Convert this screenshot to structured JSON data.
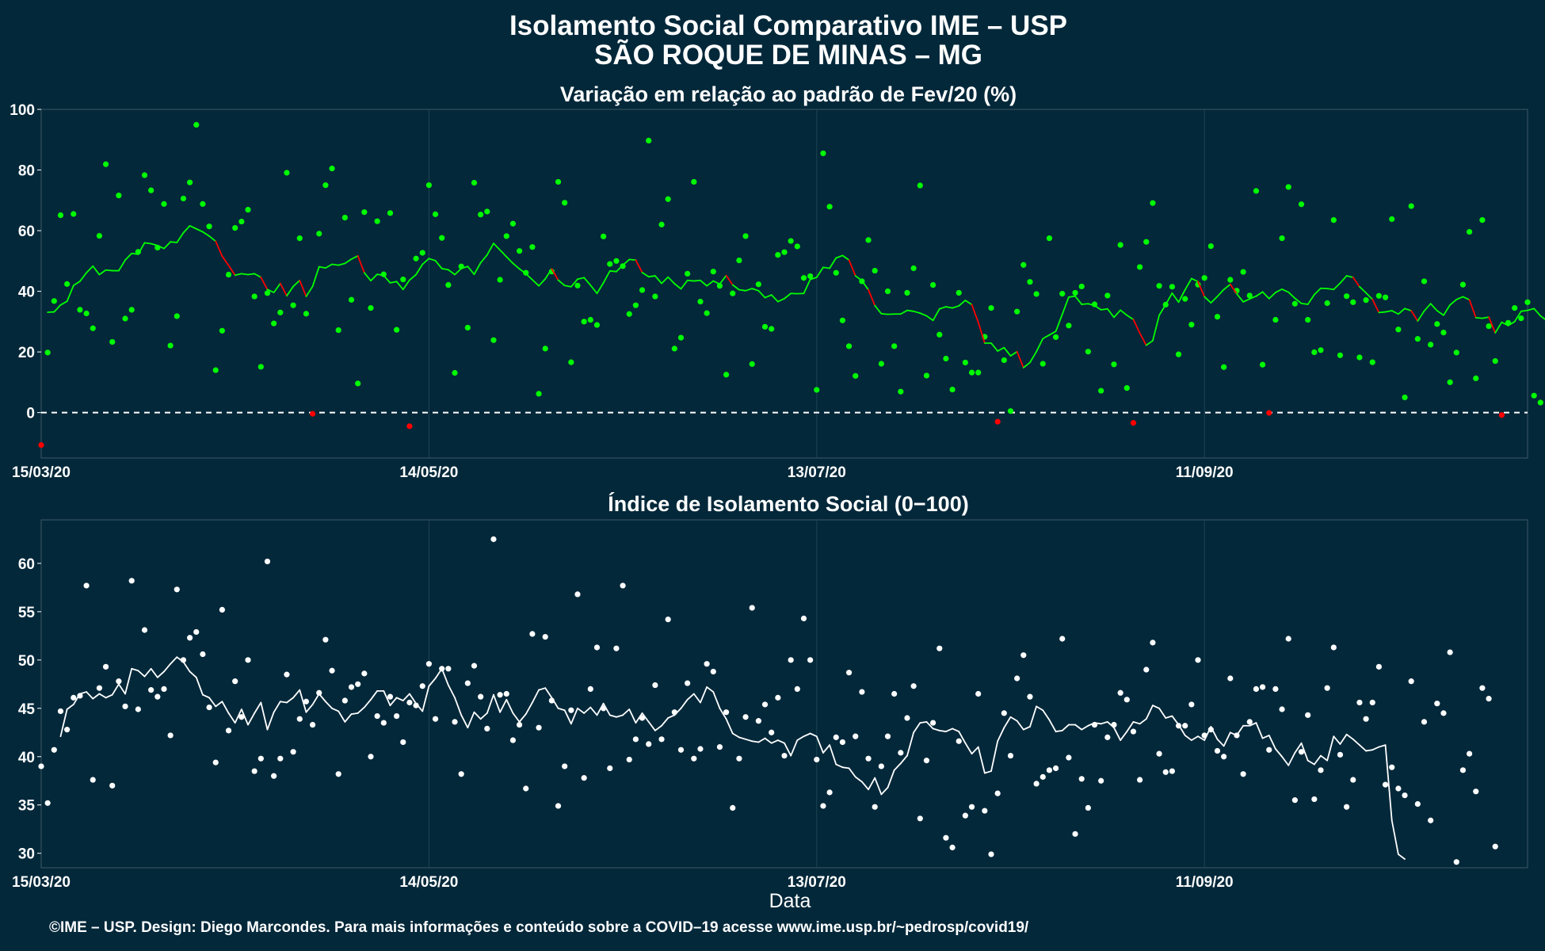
{
  "header": {
    "title_line1": "Isolamento Social Comparativo IME – USP",
    "title_line2": "SÃO ROQUE DE MINAS – MG"
  },
  "caption": "©IME – USP. Design: Diego Marcondes. Para mais informações e conteúdo sobre a COVID–19 acesse www.ime.usp.br/~pedrosp/covid19/",
  "colors": {
    "background": "#03283a",
    "grid": "#1f4452",
    "positive": "#00ff00",
    "negative": "#ff0000",
    "index": "#ffffff"
  },
  "chart_data": [
    {
      "id": "variation",
      "type": "scatter",
      "title": "Variação em relação ao padrão de Fev/20 (%)",
      "xlabel": "",
      "ylabel": "",
      "x_start": "15/03/20",
      "x_end": "31/10/20",
      "xticks": [
        "15/03/20",
        "14/05/20",
        "13/07/20",
        "11/09/20"
      ],
      "xlim": [
        0,
        230
      ],
      "ylim": [
        -15,
        100
      ],
      "yticks": [
        0,
        20,
        40,
        60,
        80,
        100
      ],
      "reference_line": 0,
      "grid": true,
      "series": [
        {
          "kind": "daily_points",
          "values": [
            -10.7,
            19.8,
            36.8,
            65.1,
            42.4,
            65.5,
            33.9,
            32.7,
            27.8,
            58.3,
            81.9,
            23.3,
            71.6,
            31,
            33.9,
            53,
            78.3,
            73.3,
            54.4,
            68.8,
            22.1,
            31.8,
            70.6,
            75.9,
            94.9,
            68.8,
            61.4,
            14,
            27,
            45.5,
            60.9,
            63,
            66.9,
            38.3,
            15.1,
            39.4,
            29.4,
            33,
            79.1,
            35.4,
            57.5,
            32.6,
            -0.4,
            59,
            75,
            80.5,
            27.2,
            64.3,
            37.2,
            9.6,
            66.1,
            34.5,
            63.1,
            45.6,
            65.8,
            27.3,
            43.9,
            -4.5,
            50.8,
            52.7,
            75,
            65.4,
            57.6,
            42.1,
            13.1,
            48.2,
            28,
            75.8,
            65.3,
            66.3,
            23.9,
            43.8,
            58.2,
            62.3,
            53.3,
            46.1,
            54.6,
            6.2,
            21.1,
            46.5,
            76.1,
            69.2,
            16.6,
            41.9,
            30,
            30.6,
            28.9,
            58.1,
            49,
            50,
            48.3,
            32.5,
            35.4,
            40.4,
            89.7,
            38.3,
            62,
            70.4,
            21.1,
            24.7,
            45.8,
            76.1,
            36.6,
            32.8,
            46.5,
            41.8,
            12.5,
            39.3,
            50.2,
            58.2,
            16,
            42.3,
            28.3,
            27.6,
            52,
            52.9,
            56.6,
            54.8,
            44.4,
            45,
            7.5,
            85.5,
            67.9,
            46.1,
            30.4,
            21.9,
            12.1,
            43.3,
            56.9,
            46.8,
            16.1,
            40,
            21.9,
            6.9,
            39.5,
            47.6,
            74.9,
            12.2,
            42.1,
            25.7,
            17.8,
            7.6,
            39.5,
            16.5,
            13.2,
            13.2,
            25,
            34.5,
            -3,
            17.3,
            0.5,
            33.3,
            48.7,
            43.1,
            39.1,
            16.1,
            57.5,
            24.9,
            39.2,
            28.7,
            39.5,
            41.6,
            20.1,
            35.7,
            7.2,
            38.6,
            15.9,
            55.3,
            8.1,
            -3.4,
            48,
            56.3,
            69.1,
            41.8,
            35.6,
            41.5,
            19.2,
            37.5,
            29,
            42.2,
            44.4,
            54.9,
            31.6,
            15,
            43.8,
            40.2,
            46.4,
            38.6,
            73.1,
            15.8,
            -0.1,
            30.6,
            57.5,
            74.4,
            35.9,
            68.7,
            30.6,
            19.9,
            20.6,
            36.1,
            63.5,
            18.9,
            38.4,
            36.4,
            18.2,
            37.1,
            16.6,
            38.5,
            38,
            63.8,
            27.4,
            5,
            68.1,
            24.3,
            43.3,
            22.4,
            29.2,
            26.4,
            10,
            19.8,
            42.2,
            59.6,
            11.3,
            63.5,
            28.5,
            17,
            -0.8,
            29.6,
            34.5,
            31.1,
            36.4,
            5.6,
            3.3
          ]
        },
        {
          "kind": "moving_average",
          "start_x": 1,
          "values": [
            33.1,
            33.2,
            35.5,
            36.7,
            41.9,
            43.3,
            46.1,
            48.3,
            45.5,
            47,
            46.8,
            46.8,
            50.3,
            52.5,
            52.2,
            56,
            55.7,
            55.1,
            54.1,
            56.3,
            56.1,
            59.3,
            61.6,
            60.6,
            59.6,
            58.2,
            56.5,
            51.6,
            48.5,
            45.3,
            45.8,
            45.5,
            45.8,
            44.6,
            40.6,
            39.6,
            42.6,
            38.5,
            41.6,
            43.6,
            38.3,
            41.6,
            48.1,
            47.7,
            48.9,
            48.6,
            49.2,
            50.6,
            51.7,
            46.1,
            43.5,
            45.6,
            45.2,
            42.8,
            43.2,
            40.6,
            43.7,
            45.5,
            48.9,
            50.8,
            50.1,
            47.5,
            47.1,
            45.5,
            47.5,
            48.2,
            45.6,
            49.4,
            52,
            55.8,
            53.6,
            51.4,
            49.2,
            47.4,
            45.8,
            43.8,
            41.8,
            44.1,
            47.4,
            43.7,
            41.9,
            41.5,
            44,
            44.5,
            42,
            39.3,
            42.8,
            46.7,
            46.5,
            48.6,
            50.5,
            50.3,
            46.2,
            44.8,
            45.1,
            42.6,
            44.7,
            42.5,
            40.8,
            43.6,
            43.4,
            43.6,
            41.8,
            43.4,
            42.4,
            45.2,
            42.1,
            40.5,
            40.2,
            40.9,
            40.2,
            37.9,
            38.8,
            36.6,
            37.6,
            39.3,
            39.2,
            39.3,
            43.9,
            44.6,
            47.9,
            47.6,
            51,
            51.8,
            50.3,
            45.1,
            43.5,
            40.5,
            35.3,
            32.6,
            32.4,
            32.5,
            32.5,
            33.7,
            33.4,
            32.8,
            31.9,
            30.4,
            34.2,
            34.9,
            34.5,
            35.2,
            37,
            35.6,
            29.8,
            22.9,
            22.9,
            20.3,
            21.4,
            18.7,
            20.1,
            14.8,
            16.5,
            20.1,
            24.4,
            25.6,
            26.8,
            32.4,
            38.1,
            38.4,
            35.7,
            35.9,
            35.3,
            33.9,
            34.2,
            31.4,
            33.8,
            32.1,
            30.7,
            26.2,
            22.2,
            23.7,
            32.1,
            35.6,
            39.4,
            36.4,
            40.5,
            44.2,
            43.2,
            38.2,
            36.2,
            38.3,
            40.6,
            42.3,
            39.2,
            36.5,
            37.5,
            38.4,
            39.8,
            37.6,
            39.6,
            40.7,
            39.7,
            37.7,
            36,
            35.7,
            38.9,
            41,
            40.9,
            40.6,
            42.7,
            45.1,
            44.6,
            41.5,
            39.5,
            37.3,
            33,
            33.2,
            33.6,
            32.5,
            34.3,
            33.6,
            30.2,
            33.5,
            35.9,
            33.6,
            32.1,
            35.5,
            37.3,
            38.2,
            37.2,
            31.3,
            31.1,
            31.5,
            26.3,
            29.8,
            28.7,
            30,
            33.4,
            33.7,
            34.3,
            31.9,
            30.3,
            26.7,
            28.8,
            25.1,
            22.5,
            20.7
          ]
        }
      ]
    },
    {
      "id": "index",
      "type": "scatter",
      "title": "Índice de Isolamento Social (0−100)",
      "xlabel": "Data",
      "ylabel": "",
      "x_start": "15/03/20",
      "x_end": "31/10/20",
      "xticks": [
        "15/03/20",
        "14/05/20",
        "13/07/20",
        "11/09/20"
      ],
      "xlim": [
        0,
        230
      ],
      "ylim": [
        28.5,
        64.5
      ],
      "yticks": [
        30,
        35,
        40,
        45,
        50,
        55,
        60
      ],
      "grid": true,
      "series": [
        {
          "kind": "daily_points",
          "values": [
            39,
            35.2,
            40.7,
            44.7,
            42.8,
            46.1,
            46.3,
            57.7,
            37.6,
            47.1,
            49.3,
            37,
            47.8,
            45.2,
            58.2,
            44.9,
            53.1,
            46.9,
            46.2,
            47,
            42.2,
            57.3,
            50,
            52.3,
            52.9,
            50.6,
            45.1,
            39.4,
            55.2,
            42.7,
            47.8,
            44.1,
            50,
            38.5,
            39.8,
            60.2,
            38,
            39.8,
            48.5,
            40.5,
            43.9,
            45.7,
            43.3,
            46.6,
            52.1,
            48.9,
            38.2,
            45.8,
            47.2,
            47.5,
            48.6,
            40,
            44.2,
            43.5,
            46.2,
            44.2,
            41.5,
            45.6,
            45.3,
            47.3,
            49.6,
            43.9,
            49.1,
            49.1,
            43.6,
            38.2,
            47.6,
            49.4,
            46.2,
            42.9,
            62.5,
            46.4,
            46.5,
            41.7,
            43.3,
            36.7,
            52.7,
            43,
            52.4,
            45.8,
            34.9,
            39,
            44.8,
            56.8,
            37.8,
            47,
            51.3,
            45,
            38.8,
            51.2,
            57.7,
            39.7,
            41.8,
            44,
            41.3,
            47.4,
            41.8,
            54.2,
            44.6,
            40.7,
            47.6,
            39.8,
            40.8,
            49.6,
            48.8,
            41,
            44.6,
            34.7,
            39.8,
            44.1,
            55.4,
            43.7,
            45.4,
            42.5,
            46.1,
            40.1,
            50,
            47,
            54.3,
            50,
            39.7,
            34.9,
            36.3,
            42,
            41.5,
            48.7,
            42.1,
            46.7,
            39.8,
            34.8,
            39,
            42.1,
            46.5,
            40.4,
            44,
            47.3,
            33.6,
            39.6,
            43.5,
            51.2,
            31.6,
            30.6,
            41.6,
            33.9,
            34.8,
            46.5,
            34.4,
            29.9,
            36.2,
            44.5,
            40.1,
            48.1,
            50.5,
            46.2,
            37.2,
            37.9,
            38.6,
            38.8,
            52.2,
            39.9,
            32,
            37.7,
            34.7,
            43.3,
            37.5,
            42,
            43.3,
            46.6,
            45.9,
            42.6,
            37.6,
            49,
            51.8,
            40.3,
            38.4,
            38.5,
            43.2,
            43.2,
            45.4,
            50,
            42.2,
            42.8,
            40.6,
            40,
            48.1,
            42.2,
            38.2,
            43.6,
            47,
            47.2,
            40.7,
            47,
            44.9,
            52.2,
            35.5,
            40.5,
            44.3,
            35.6,
            38.6,
            47.1,
            51.3,
            40.2,
            34.8,
            37.6,
            45.6,
            43.9,
            45.6,
            49.3,
            37.1,
            38.9,
            36.7,
            36,
            47.8,
            35.1,
            43.6,
            33.4,
            45.5,
            44.5,
            50.8,
            29.1,
            38.6,
            40.3,
            36.4,
            47.1,
            46,
            30.7
          ]
        },
        {
          "kind": "moving_average",
          "start_x": 3,
          "values": [
            42.1,
            44.9,
            45.4,
            46.5,
            46.7,
            46,
            46.5,
            46.1,
            46.4,
            47.5,
            46.5,
            49.1,
            48.9,
            48.3,
            49.1,
            48.2,
            48.8,
            49.6,
            50.3,
            49.8,
            48.8,
            48.2,
            46.4,
            46.1,
            45.2,
            45.7,
            44.5,
            43.5,
            44.9,
            43.3,
            44.5,
            45.6,
            42.8,
            44.6,
            45.7,
            45.6,
            46.1,
            46.9,
            44.6,
            45.4,
            46.5,
            45.7,
            45,
            44.7,
            43.6,
            44.4,
            44.5,
            45.1,
            45.9,
            46.8,
            46.8,
            45.3,
            46.1,
            45.8,
            46.5,
            45.5,
            44.7,
            47.3,
            48.1,
            49.1,
            47.4,
            46.1,
            44.3,
            43,
            44.6,
            43.9,
            44.5,
            46.4,
            44.6,
            45.9,
            44.5,
            43.6,
            44.4,
            45.6,
            46.9,
            47.1,
            46.1,
            45,
            44.8,
            43.4,
            45,
            44.5,
            45.1,
            44.3,
            45.5,
            44.3,
            44.1,
            44.3,
            44.9,
            43.5,
            44.5,
            43.6,
            42.7,
            43.2,
            44,
            44.3,
            45,
            45.9,
            46.5,
            45.6,
            47.2,
            46.7,
            45,
            43.9,
            42.4,
            42,
            41.8,
            41.6,
            41.5,
            41.9,
            41.4,
            41.7,
            41.4,
            40.1,
            41.7,
            42.1,
            42.4,
            42.1,
            40.4,
            41.2,
            39.2,
            38.9,
            38.8,
            37.9,
            37.4,
            36.6,
            37.8,
            36.1,
            36.8,
            38.6,
            39.3,
            40.1,
            42.5,
            43.5,
            43.6,
            42.9,
            42.7,
            42.6,
            42.9,
            42.6,
            41.4,
            40.3,
            41,
            38.3,
            38.5,
            41.6,
            43,
            44.1,
            43.7,
            42.8,
            43.1,
            45.2,
            44.8,
            43.8,
            42.6,
            42.7,
            43.3,
            43.3,
            42.8,
            43.2,
            43.5,
            43.4,
            43.6,
            43,
            41.7,
            42.6,
            43.6,
            43.4,
            43.9,
            45.3,
            45,
            44,
            44.2,
            43.3,
            42.2,
            41.7,
            42.1,
            41.7,
            43.1,
            41.8,
            41.1,
            42.5,
            42.2,
            43.2,
            43.2,
            43.5,
            41.9,
            42.2,
            40.8,
            40,
            39.1,
            40.4,
            41.4,
            39.6,
            39.2,
            40.1,
            39.6,
            42.1,
            41.3,
            42.3,
            41.8,
            41.2,
            40.6,
            40.7,
            41,
            41.2,
            33.4,
            29.9,
            29.4
          ]
        }
      ]
    }
  ]
}
